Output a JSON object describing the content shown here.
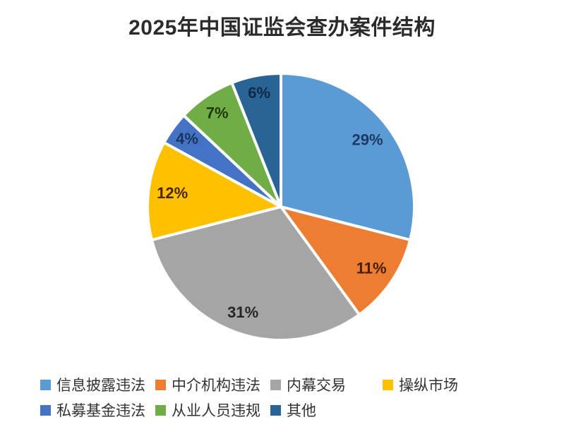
{
  "chart_data": {
    "type": "pie",
    "title": "2025年中国证监会查办案件结构",
    "legend_position": "bottom",
    "start_angle_deg": 0,
    "direction": "clockwise",
    "total": 100,
    "slices": [
      {
        "name": "信息披露违法",
        "value": 29,
        "label": "29%",
        "color": "#5B9BD5",
        "label_color": "#1F3864"
      },
      {
        "name": "中介机构违法",
        "value": 11,
        "label": "11%",
        "color": "#ED7D31",
        "label_color": "#44200B"
      },
      {
        "name": "内幕交易",
        "value": 31,
        "label": "31%",
        "color": "#A5A5A5",
        "label_color": "#262626"
      },
      {
        "name": "操纵市场",
        "value": 12,
        "label": "12%",
        "color": "#FFC000",
        "label_color": "#4A2600"
      },
      {
        "name": "私募基金违法",
        "value": 4,
        "label": "4%",
        "color": "#4472C4",
        "label_color": "#17365D"
      },
      {
        "name": "从业人员违规",
        "value": 7,
        "label": "7%",
        "color": "#70AD47",
        "label_color": "#1E3809"
      },
      {
        "name": "其他",
        "value": 6,
        "label": "6%",
        "color": "#2A6496",
        "label_color": "#0E2A45"
      }
    ]
  }
}
